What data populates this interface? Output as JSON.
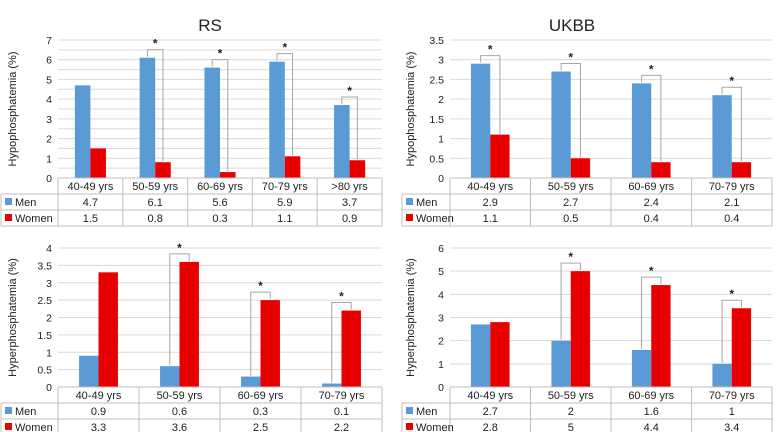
{
  "titles": {
    "left": "RS",
    "right": "UKBB"
  },
  "colors": {
    "men": "#5b9bd5",
    "women": "#e80000"
  },
  "chart_data": [
    {
      "type": "bar",
      "panel": "rs-hypo",
      "ylabel": "Hypophosphatemia (%)",
      "ylim": [
        0,
        7
      ],
      "ytick_step": 0.5,
      "yticks": [
        "0",
        "0.5",
        "1",
        "1.5",
        "2",
        "2.5",
        "3",
        "3.5",
        "4",
        "4.5",
        "5",
        "5.5",
        "6",
        "6.5",
        "7"
      ],
      "show_ticks": [
        "0",
        "1",
        "2",
        "3",
        "4",
        "5",
        "6",
        "7"
      ],
      "categories": [
        "40-49 yrs",
        "50-59 yrs",
        "60-69 yrs",
        "70-79 yrs",
        ">80 yrs"
      ],
      "series": [
        {
          "name": "Men",
          "key": "men",
          "values": [
            4.7,
            6.1,
            5.6,
            5.9,
            3.7
          ],
          "labels": [
            "4.7",
            "6.1",
            "5.6",
            "5.9",
            "3.7"
          ]
        },
        {
          "name": "Women",
          "key": "women",
          "values": [
            1.5,
            0.8,
            0.3,
            1.1,
            0.9
          ],
          "labels": [
            "1.5",
            "0.8",
            "0.3",
            "1.1",
            "0.9"
          ]
        }
      ],
      "significant": [
        false,
        true,
        true,
        true,
        true
      ],
      "sig_marker": "*"
    },
    {
      "type": "bar",
      "panel": "ukbb-hypo",
      "ylabel": "Hypophosphatemia (%)",
      "ylim": [
        0,
        3.5
      ],
      "ytick_step": 0.5,
      "yticks": [
        "0",
        "0.5",
        "1",
        "1.5",
        "2",
        "2.5",
        "3",
        "3.5"
      ],
      "categories": [
        "40-49 yrs",
        "50-59 yrs",
        "60-69 yrs",
        "70-79 yrs"
      ],
      "series": [
        {
          "name": "Men",
          "key": "men",
          "values": [
            2.9,
            2.7,
            2.4,
            2.1
          ],
          "labels": [
            "2.9",
            "2.7",
            "2.4",
            "2.1"
          ]
        },
        {
          "name": "Women",
          "key": "women",
          "values": [
            1.1,
            0.5,
            0.4,
            0.4
          ],
          "labels": [
            "1.1",
            "0.5",
            "0.4",
            "0.4"
          ]
        }
      ],
      "significant": [
        true,
        true,
        true,
        true
      ],
      "sig_marker": "*"
    },
    {
      "type": "bar",
      "panel": "rs-hyper",
      "ylabel": "Hyperphosphatemia (%)",
      "ylim": [
        0,
        4
      ],
      "ytick_step": 0.5,
      "yticks": [
        "0",
        "0.5",
        "1",
        "1.5",
        "2",
        "2.5",
        "3",
        "3.5",
        "4"
      ],
      "categories": [
        "40-49 yrs",
        "50-59 yrs",
        "60-69 yrs",
        "70-79 yrs"
      ],
      "series": [
        {
          "name": "Men",
          "key": "men",
          "values": [
            0.9,
            0.6,
            0.3,
            0.1
          ],
          "labels": [
            "0.9",
            "0.6",
            "0.3",
            "0.1"
          ]
        },
        {
          "name": "Women",
          "key": "women",
          "values": [
            3.3,
            3.6,
            2.5,
            2.2
          ],
          "labels": [
            "3.3",
            "3.6",
            "2.5",
            "2.2"
          ]
        }
      ],
      "significant": [
        false,
        true,
        true,
        true
      ],
      "sig_marker": "*"
    },
    {
      "type": "bar",
      "panel": "ukbb-hyper",
      "ylabel": "Hyperphosphatemia (%)",
      "ylim": [
        0,
        6
      ],
      "ytick_step": 1,
      "yticks": [
        "0",
        "1",
        "2",
        "3",
        "4",
        "5",
        "6"
      ],
      "categories": [
        "40-49 yrs",
        "50-59 yrs",
        "60-69 yrs",
        "70-79 yrs"
      ],
      "series": [
        {
          "name": "Men",
          "key": "men",
          "values": [
            2.7,
            2,
            1.6,
            1
          ],
          "labels": [
            "2.7",
            "2",
            "1.6",
            "1"
          ]
        },
        {
          "name": "Women",
          "key": "women",
          "values": [
            2.8,
            5,
            4.4,
            3.4
          ],
          "labels": [
            "2.8",
            "5",
            "4.4",
            "3.4"
          ]
        }
      ],
      "significant": [
        false,
        true,
        true,
        true
      ],
      "sig_marker": "*"
    }
  ]
}
